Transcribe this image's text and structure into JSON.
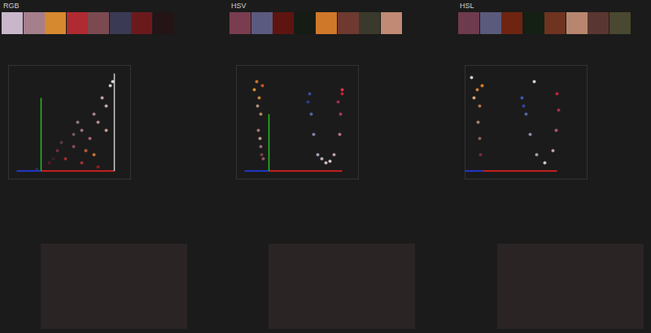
{
  "chart_data": [
    {
      "type": "scatter",
      "title": "RGB",
      "palette": [
        "#c9b6cb",
        "#a57f8c",
        "#d6892e",
        "#b02a31",
        "#7a4a50",
        "#3a3a55",
        "#6b1a1c",
        "#241416"
      ],
      "tick_labels": false,
      "xlim": [
        0,
        150
      ],
      "ylim": [
        0,
        140
      ],
      "axes": [
        {
          "color": "#2040ff",
          "x1": 10,
          "y1": 10,
          "x2": 40,
          "y2": 10
        },
        {
          "color": "#ff2020",
          "x1": 40,
          "y1": 10,
          "x2": 130,
          "y2": 10
        },
        {
          "color": "#20c020",
          "x1": 40,
          "y1": 10,
          "x2": 40,
          "y2": 100
        },
        {
          "color": "#cccccc",
          "x1": 130,
          "y1": 10,
          "x2": 130,
          "y2": 130
        }
      ],
      "x": [
        50,
        70,
        90,
        110,
        60,
        80,
        100,
        90,
        110,
        120,
        115,
        125,
        105,
        80,
        65,
        95,
        105,
        55,
        120,
        85,
        128,
        45,
        35
      ],
      "y": [
        20,
        25,
        20,
        15,
        35,
        40,
        50,
        60,
        70,
        90,
        100,
        115,
        80,
        55,
        45,
        35,
        30,
        25,
        60,
        70,
        120,
        15,
        12
      ],
      "colors": [
        "#601828",
        "#b03030",
        "#c03040",
        "#a02020",
        "#803040",
        "#a05060",
        "#c07080",
        "#b08090",
        "#d0a0a0",
        "#e0c0c0",
        "#d8b8c0",
        "#f0e0e0",
        "#c09098",
        "#806070",
        "#604050",
        "#d06040",
        "#e08040",
        "#402030",
        "#e0b0a0",
        "#a08898",
        "#f5f0f0",
        "#301020",
        "#303060"
      ]
    },
    {
      "type": "scatter",
      "title": "HSV",
      "palette": [
        "#7a3d4f",
        "#5a5a80",
        "#5e1410",
        "#141c14",
        "#d0782a",
        "#6e3a30",
        "#3a3a2c",
        "#c08a74"
      ],
      "tick_labels": false,
      "xlim": [
        0,
        150
      ],
      "ylim": [
        0,
        140
      ],
      "axes": [
        {
          "color": "#2040ff",
          "x1": 10,
          "y1": 10,
          "x2": 40,
          "y2": 10
        },
        {
          "color": "#ff2020",
          "x1": 40,
          "y1": 10,
          "x2": 130,
          "y2": 10
        },
        {
          "color": "#20c020",
          "x1": 40,
          "y1": 10,
          "x2": 40,
          "y2": 80
        }
      ],
      "x": [
        25,
        28,
        30,
        27,
        30,
        33,
        22,
        32,
        26,
        29,
        31,
        90,
        92,
        95,
        100,
        110,
        120,
        127,
        128,
        130,
        125,
        105,
        115,
        88,
        130
      ],
      "y": [
        120,
        100,
        80,
        60,
        40,
        25,
        110,
        115,
        90,
        50,
        30,
        105,
        80,
        55,
        30,
        20,
        30,
        55,
        80,
        105,
        95,
        25,
        22,
        95,
        110
      ],
      "colors": [
        "#e08030",
        "#e09040",
        "#d09070",
        "#c08080",
        "#b07080",
        "#a06070",
        "#f0a030",
        "#e06030",
        "#c8a090",
        "#d0b0a0",
        "#904050",
        "#4050c0",
        "#6070b0",
        "#9090c0",
        "#c0b0d0",
        "#e0d0e0",
        "#e0b0c0",
        "#d08090",
        "#c04060",
        "#e02040",
        "#b03050",
        "#d0c8d8",
        "#f0e0e8",
        "#3040a0",
        "#ff3050"
      ]
    },
    {
      "type": "scatter",
      "title": "HSL",
      "palette": [
        "#6e3a4e",
        "#5a5a7c",
        "#6e2410",
        "#142014",
        "#6e3420",
        "#b8866e",
        "#5a3632",
        "#4a4830"
      ],
      "tick_labels": false,
      "xlim": [
        0,
        150
      ],
      "ylim": [
        0,
        140
      ],
      "axes": [
        {
          "color": "#2040ff",
          "x1": 0,
          "y1": 10,
          "x2": 22,
          "y2": 10
        },
        {
          "color": "#ff2020",
          "x1": 22,
          "y1": 10,
          "x2": 113,
          "y2": 10
        }
      ],
      "x": [
        8,
        15,
        18,
        16,
        18,
        19,
        11,
        21,
        70,
        75,
        80,
        88,
        98,
        108,
        112,
        115,
        113,
        85,
        72
      ],
      "y": [
        125,
        110,
        90,
        70,
        50,
        30,
        100,
        115,
        100,
        80,
        55,
        30,
        20,
        35,
        60,
        85,
        105,
        120,
        90
      ],
      "colors": [
        "#f0f0e0",
        "#e09040",
        "#d08050",
        "#c09080",
        "#a07060",
        "#803040",
        "#f0c080",
        "#ff9020",
        "#4060d0",
        "#6070b0",
        "#a0a0c0",
        "#c0b0c0",
        "#f0e0e8",
        "#e0b0c0",
        "#c06080",
        "#c03050",
        "#e02040",
        "#f0f0f0",
        "#3050b0"
      ]
    }
  ]
}
